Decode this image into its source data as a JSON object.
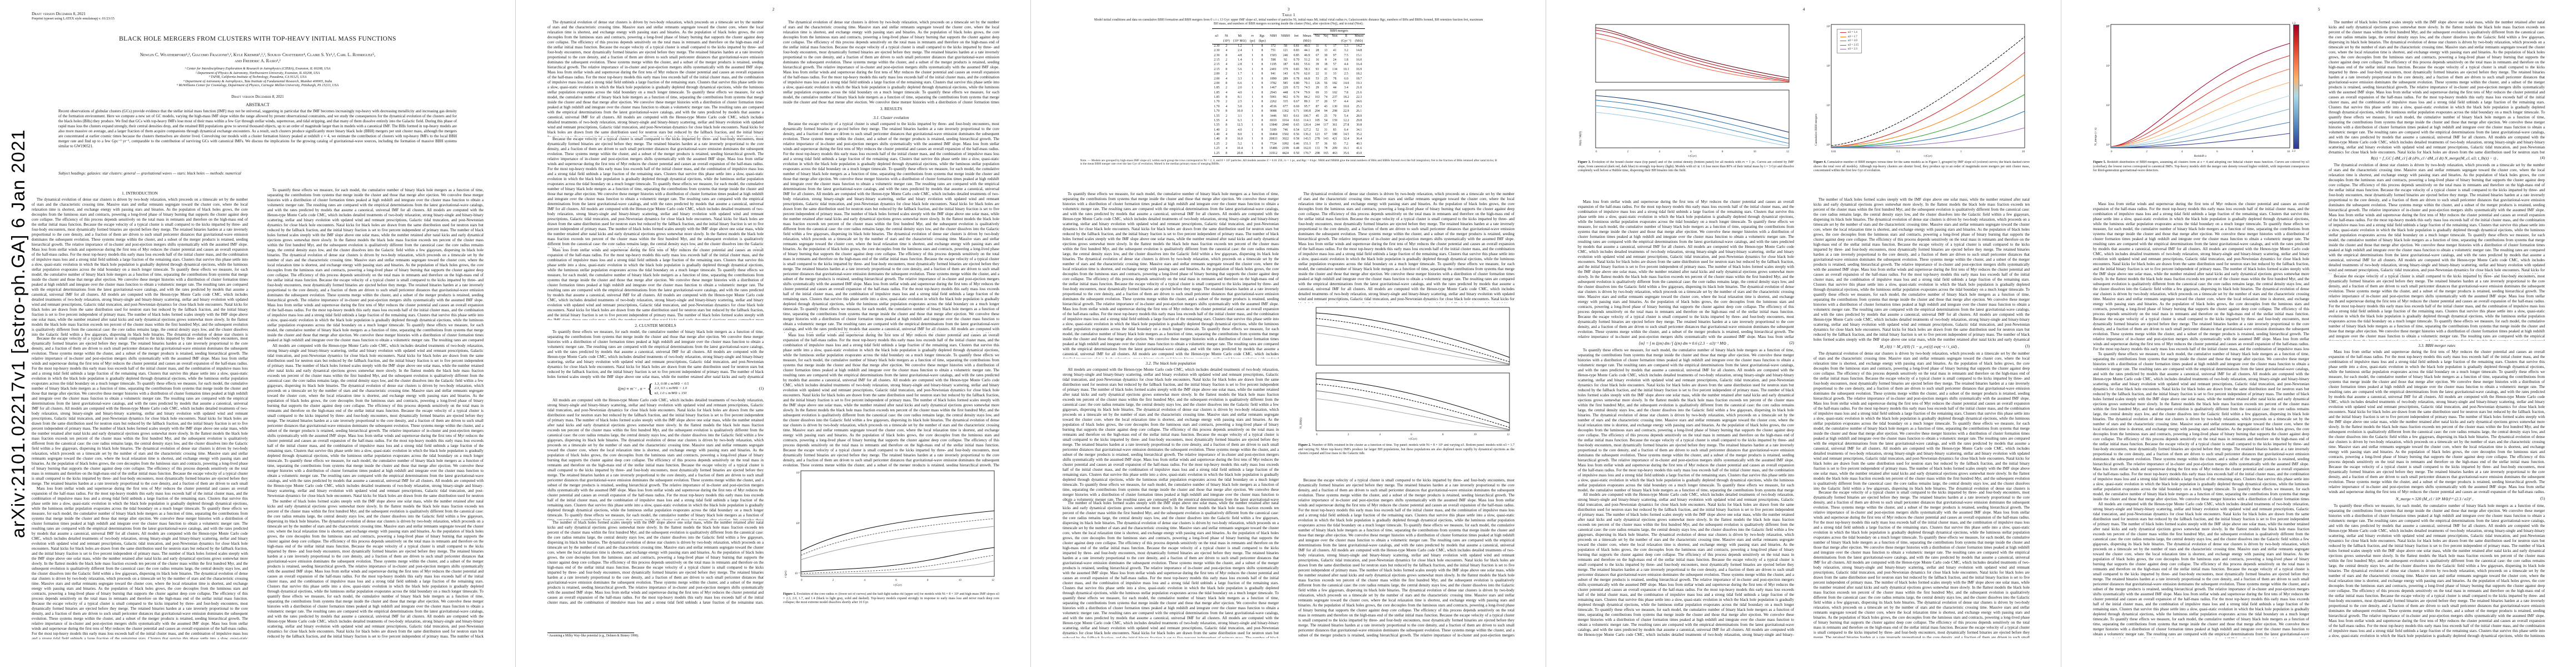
{
  "arxiv_stamp": "arXiv:2101.02217v1  [astro-ph.GA]  6 Jan 2021",
  "page_numbers": {
    "p2": "2",
    "p3": "3",
    "p4": "4",
    "p5": "5"
  },
  "page1": {
    "draft_line": "Draft version December 8, 2021",
    "preprint_line": "Preprint typeset using LATEX style emulateapj v. 01/23/15",
    "title": "BLACK HOLE MERGERS FROM CLUSTERS WITH TOP-HEAVY INITIAL MASS FUNCTIONS",
    "authors_line1": "Newlin C. Weatherford¹,², Giacomo Fragione¹,², Kyle Kremer¹,²,³, Sourav Chatterjee⁴, Claire S. Ye¹,², Carl L. Rodriguez⁵,",
    "authors_line2": "and Frederic A. Rasio¹,²",
    "affiliations": [
      "¹ Center for Interdisciplinary Exploration & Research in Astrophysics (CIERA), Evanston, IL 60208, USA",
      "² Department of Physics & Astronomy, Northwestern University, Evanston, IL 60208, USA",
      "³ TAPIR, California Institute of Technology, Pasadena, CA 91125, USA",
      "⁴ Department of Astronomy & Astrophysics, Tata Institute of Fundamental Research, Mumbai 400005, India",
      "⁵ McWilliams Center for Cosmology, Department of Physics, Carnegie Mellon University, Pittsburgh, PA 15213, USA"
    ],
    "date_line": "Draft version December 8, 2021",
    "abstract_heading": "ABSTRACT",
    "abstract": "Recent observations of globular clusters (GCs) provide evidence that the stellar initial mass function (IMF) may not be universal, suggesting in particular that the IMF becomes increasingly top-heavy with decreasing metallicity and increasing gas density of the formation environment. Here we compute a new set of GC models, varying the high-mass IMF slope within the range allowed by present observational constraints, and we study the consequences for the dynamical evolution of the clusters and for the black holes (BHs) they produce. We find that GCs with top-heavy IMFs lose most of their mass within a few Gyr through stellar winds, supernovae, and tidal stripping, and that many of them dissolve entirely into the Galactic field. During this phase of rapid mass loss the clusters expand strongly, their central densities drop, and the retained BH populations grow to several thousand objects, up to an order of magnitude larger than in models with a canonical IMF. The BHs formed in top-heavy models are also more massive on average, and a larger fraction of them acquire companions through dynamical exchange encounters. As a result, such clusters produce significantly more binary black hole (BBH) mergers per unit cluster mass, although the mergers are concentrated at earlier cosmic times because the clusters themselves are shorter lived. Convolving our models with a cluster formation history peaked at redshift z ≈ 4, we estimate the contribution of clusters with top-heavy IMFs to the local BBH merger rate and find up to a few Gpc⁻³ yr⁻¹, comparable to the contribution of surviving GCs with canonical IMFs. We discuss the implications for the growing catalog of gravitational-wave sources, including the formation of massive BBH systems similar to GW190521.",
    "keywords": "Subject headings: galaxies: star clusters: general — gravitational waves — stars: black holes — methods: numerical"
  },
  "sections": {
    "s1": "1. INTRODUCTION",
    "s2": "2. CLUSTER MODELS",
    "s3": "3. RESULTS",
    "s31": "3.1. Cluster evolution",
    "s32": "3.2. The black hole population",
    "s33": "3.3. BBH merger rates"
  },
  "footnotes": {
    "fn1": "¹ Assuming a Milky Way–like potential (e.g., Dehnen & Binney 1998)."
  },
  "equations": {
    "eq1": {
      "lhs": "ξ(m) ∝ m⁻ᵃ ,    α = ",
      "cases": [
        "1.3,   0.08 ≤ m/M⊙ < 0.5",
        "2.3,   0.5 ≤ m/M⊙ < 1.0",
        "α3,   1.0 ≤ m/M⊙ ≤ 150"
      ],
      "num": "(1)"
    },
    "eq2": {
      "body": "⟨m⟩ = ∫ m ξ(m) dm ⁄ ∫ ξ(m) dm ≈ 0.6 (2.3 − α3)⁻¹ M⊙ ,",
      "num": "(2)"
    },
    "eq3": {
      "body": "M_cl(t) = M_cl(0) [1 − μ_ev(t)] exp(−t / t_tid) ,",
      "num": "(3)"
    },
    "eq4": {
      "body": "R(z) = f_GC ∫ dM_cl ∫ dt (d²n_cl / dM_cl dt) N_merge(M_cl, α3; t_lb(z) − t) ,",
      "num": "(4)"
    },
    "eq5": {
      "body": "N_merge ≈ 320 (M_cl / 10⁶ M⊙)¹·⁶ (2.3 / α3)³ ,",
      "num": "(5)"
    }
  },
  "table1": {
    "label": "Table 1",
    "caption": "Model initial conditions and data on cumulative BBH formation and BBH mergers from 0 ≤ t ≤ 13 Gyr: upper IMF slope α3, initial number of particles Ni, initial mass Mi, initial virial radius rv, Galactocentric distance Rgc, numbers of BHs and BBHs formed, BH retention fraction fret, maximum BH mass, and numbers of BBH mergers occurring inside the cluster (Nin), after ejection (Nej), and in total (Ntot).",
    "group_header": "BBH mergers",
    "columns": [
      "α3",
      "Ni",
      "Mi",
      "rv",
      "Rgc",
      "NBH",
      "NBBH",
      "fret",
      "Mmax",
      "Nin",
      "Nej",
      "Ntot",
      "R",
      "Mmed"
    ],
    "units": [
      "",
      "(10⁵)",
      "(10⁵ M⊙)",
      "(pc)",
      "(kpc)",
      "",
      "",
      "",
      "(M⊙)",
      "",
      "",
      "",
      "(Gyr⁻¹)",
      "(M⊙)"
    ],
    "rows": [
      [
        "2.30",
        "2",
        "1.2",
        "1",
        "8",
        "372",
        "58",
        "0.81",
        "40.5",
        "11",
        "6",
        "17",
        "1.3",
        "14.2"
      ],
      [
        "2.30",
        "4",
        "2.4",
        "1",
        "8",
        "751",
        "121",
        "0.83",
        "44.1",
        "28",
        "13",
        "41",
        "3.2",
        "14.8"
      ],
      [
        "2.30",
        "8",
        "4.8",
        "1",
        "8",
        "1503",
        "246",
        "0.85",
        "46.9",
        "67",
        "30",
        "97",
        "7.5",
        "15.1"
      ],
      [
        "2.15",
        "2",
        "1.4",
        "1",
        "8",
        "598",
        "92",
        "0.79",
        "51.2",
        "16",
        "8",
        "24",
        "1.8",
        "16.0"
      ],
      [
        "2.15",
        "4",
        "2.8",
        "1",
        "8",
        "1195",
        "187",
        "0.81",
        "55.6",
        "39",
        "18",
        "57",
        "4.4",
        "16.4"
      ],
      [
        "2.15",
        "8",
        "5.6",
        "1",
        "8",
        "2401",
        "379",
        "0.83",
        "58.3",
        "93",
        "41",
        "134",
        "10.3",
        "16.9"
      ],
      [
        "2.00",
        "2",
        "1.7",
        "1",
        "8",
        "941",
        "143",
        "0.76",
        "62.0",
        "22",
        "11",
        "33",
        "2.5",
        "18.2"
      ],
      [
        "2.00",
        "4",
        "3.3",
        "1",
        "8",
        "1890",
        "289",
        "0.78",
        "66.8",
        "53",
        "25",
        "78",
        "6.0",
        "18.7"
      ],
      [
        "2.00",
        "8",
        "6.6",
        "1",
        "8",
        "3782",
        "585",
        "0.80",
        "70.1",
        "126",
        "56",
        "182",
        "14.0",
        "19.3"
      ],
      [
        "1.85",
        "2",
        "2.0",
        "1",
        "8",
        "1467",
        "220",
        "0.72",
        "74.5",
        "29",
        "15",
        "44",
        "3.4",
        "21.0"
      ],
      [
        "1.85",
        "4",
        "4.0",
        "1",
        "8",
        "2943",
        "448",
        "0.74",
        "79.9",
        "69",
        "33",
        "102",
        "7.8",
        "21.6"
      ],
      [
        "1.85",
        "8",
        "8.1",
        "1",
        "8",
        "5901",
        "902",
        "0.76",
        "84.2",
        "163",
        "74",
        "237",
        "18.2",
        "22.3"
      ],
      [
        "1.70",
        "2",
        "2.5",
        "1",
        "8",
        "2262",
        "335",
        "0.67",
        "89.3",
        "37",
        "20",
        "57",
        "4.4",
        "24.6"
      ],
      [
        "1.70",
        "4",
        "5.0",
        "1",
        "8",
        "4536",
        "677",
        "0.69",
        "95.7",
        "87",
        "43",
        "130",
        "10.0",
        "25.3"
      ],
      [
        "1.70",
        "8",
        "10.0",
        "1",
        "8",
        "9088",
        "1362",
        "0.71",
        "100.8",
        "204",
        "94",
        "298",
        "22.9",
        "26.1"
      ],
      [
        "1.55",
        "2",
        "3.1",
        "1",
        "8",
        "3446",
        "503",
        "0.61",
        "106.7",
        "45",
        "25",
        "70",
        "5.4",
        "28.9"
      ],
      [
        "1.55",
        "4",
        "6.3",
        "1",
        "8",
        "6910",
        "1014",
        "0.63",
        "114.3",
        "105",
        "54",
        "159",
        "12.2",
        "29.8"
      ],
      [
        "1.55",
        "8",
        "12.5",
        "1",
        "8",
        "13840",
        "2040",
        "0.65",
        "120.4",
        "244",
        "117",
        "361",
        "27.8",
        "30.8"
      ],
      [
        "1.40",
        "2",
        "4.0",
        "1",
        "8",
        "5189",
        "746",
        "0.54",
        "127.2",
        "52",
        "31",
        "83",
        "6.4",
        "34.1"
      ],
      [
        "1.40",
        "4",
        "8.0",
        "1",
        "8",
        "10404",
        "1502",
        "0.56",
        "136.2",
        "121",
        "67",
        "188",
        "14.5",
        "35.2"
      ],
      [
        "1.40",
        "8",
        "16.0",
        "1",
        "8",
        "20833",
        "3022",
        "0.58",
        "143.5",
        "278",
        "143",
        "421",
        "32.4",
        "36.4"
      ],
      [
        "1.25",
        "2",
        "5.2",
        "1",
        "8",
        "7724",
        "1092",
        "0.46",
        "151.3",
        "57",
        "36",
        "93",
        "7.2",
        "40.3"
      ],
      [
        "1.25",
        "4",
        "10.4",
        "1",
        "8",
        "15486",
        "2199",
        "0.48",
        "162.0",
        "131",
        "78",
        "209",
        "16.1",
        "41.6"
      ],
      [
        "1.25",
        "8",
        "20.8",
        "1",
        "8",
        "31012",
        "4424",
        "0.50",
        "170.7",
        "298",
        "165",
        "463",
        "35.6",
        "43.0"
      ]
    ],
    "notes": "Note. — Models are grouped by high-mass IMF slope α3; within each group the rows correspond to Ni = 2, 4, and 8 × 10⁵ particles. All models assume Z = 0.01 Z⊙, rv = 1 pc, and Rgc = 8 kpc. NBH and NBBH give the total numbers of BHs and BBHs formed over the full integration; fret is the fraction of BHs retained after natal kicks; R is the mean BBH merger rate over the last Gyr of evolution; Mmed is the median primary mass of merging BBHs."
  },
  "figures": {
    "fig1": {
      "label": "Figure 1.",
      "caption": "Evolution of the core radius rc (lower set of curves) and the half-light radius rhl (upper set) for models with Ni = 8 × 10⁵ and high-mass IMF slopes α3 = 2.3, 2.0, 1.7, and 1.4 (black to light gray, solid and dashed). Top-heavy models expand strongly in response to early mass loss and never reach deep core collapse; the most extreme model dissolves shortly after 10 Gyr.",
      "xlabel": "t (Gyr)",
      "ylabel": "r (pc)",
      "xticks": "0 2 4 6 8 10 12",
      "yticks": "10¹ 10⁰ 10⁻¹"
    },
    "fig2": {
      "label": "Figure 2.",
      "caption": "Number of BHs retained in the cluster as a function of time. Top panel: models with Ni = 8 × 10⁵ and varying α3. Bottom panel: models with α3 = 1.7 and varying Ni. More top-heavy IMFs produce far larger BH populations, but these populations are also depleted more rapidly by dynamical ejections as the clusters expand and lose mass to the Galactic tide.",
      "xlabel": "t (Gyr)",
      "ylabel": "N_BH(t)",
      "xticks": "0 2 4 6 8 10 12"
    },
    "fig3": {
      "label": "Figure 3.",
      "caption": "Evolution of the bound cluster mass (top panel) and of the central density (bottom panel) for all models with rv = 1 pc. Curves are colored by IMF slope, from canonical (dark red, dark blue) to strongly top-heavy (light). Models with α3 ≲ 1.6 lose more than 80% of their initial mass by t = 3 Gyr and dissolve completely well before a Hubble time, dispersing their BH binaries into the field.",
      "xlabel": "t (Gyr)",
      "ylabel": "M(t) / M(0)",
      "xticks": "0 2 4 6 8 10 12",
      "colors": [
        "#67000d",
        "#a50f15",
        "#cb181d",
        "#fb6a4a",
        "#08306b",
        "#2171b5",
        "#4292c6",
        "#9ecae1"
      ]
    },
    "fig4": {
      "label": "Figure 4.",
      "caption": "Cumulative number of BBH mergers versus time for the same models as in Figure 3, grouped by IMF slope α3 (colored curves; the black dashed curve shows the total over all models). Although top-heavy clusters are shorter lived, they produce up to an order of magnitude more mergers per unit cluster mass, concentrated within the first few Gyr of evolution.",
      "xlabel": "t (Gyr)",
      "ylabel": "Cumulative BBH mergers",
      "xticks": "0.01 0.1 1 10",
      "yticks": "10³ 10² 10¹ 10⁰",
      "legend": [
        "α3 = 1.4",
        "α3 = 1.7",
        "α3 = 2.0",
        "α3 = 2.15",
        "α3 = 2.3"
      ],
      "colors": [
        "#d62728",
        "#ff7f0e",
        "#2ca02c",
        "#1f77b4",
        "#9467bd"
      ]
    },
    "fig5": {
      "label": "Figure 5.",
      "caption": "Redshift distribution of BBH mergers, assuming all clusters form at z = 4 and adopting our fiducial cluster mass function. Curves are colored by α3 (colorbar); the lowest curves correspond to canonical IMFs. Top-heavy models shift the merger rate density toward higher redshift, with important consequences for third-generation gravitational-wave detectors.",
      "xlabel": "Redshift z",
      "ylabel": "N_merge (< z)",
      "xticks": "0 2 4 6 8 10",
      "yticks": "10⁴ 10³ 10² 10¹",
      "colorbar_title": "α3",
      "colorbar_top": "1.3",
      "colorbar_bottom": "2.3",
      "colors": [
        "#a50026",
        "#d73027",
        "#f46d43",
        "#fdae61",
        "#abd9e9",
        "#74add1",
        "#4575b4",
        "#313695"
      ]
    }
  },
  "filler": [
    "The dynamical evolution of dense star clusters is driven by two-body relaxation, which proceeds on a timescale set by the number of stars and the characteristic crossing time. Massive stars and stellar remnants segregate toward the cluster core, where the local relaxation time is shortest, and exchange energy with passing stars and binaries. As the population of black holes grows, the core decouples from the luminous stars and contracts, powering a long-lived phase of binary burning that supports the cluster against deep core collapse. The efficiency of this process depends sensitively on the total mass in remnants and therefore on the high-mass end of the stellar initial mass function.",
    "Because the escape velocity of a typical cluster is small compared to the kicks imparted by three- and four-body encounters, most dynamically formed binaries are ejected before they merge. The retained binaries harden at a rate inversely proportional to the core density, and a fraction of them are driven to such small pericenter distances that gravitational-wave emission dominates the subsequent evolution. These systems merge within the cluster, and a subset of the merger products is retained, seeding hierarchical growth. The relative importance of in-cluster and post-ejection mergers shifts systematically with the assumed IMF slope.",
    "Mass loss from stellar winds and supernovae during the first tens of Myr reduces the cluster potential and causes an overall expansion of the half-mass radius. For the most top-heavy models this early mass loss exceeds half of the initial cluster mass, and the combination of impulsive mass loss and a strong tidal field unbinds a large fraction of the remaining stars. Clusters that survive this phase settle into a slow, quasi-static evolution in which the black hole population is gradually depleted through dynamical ejections, while the luminous stellar population evaporates across the tidal boundary on a much longer timescale.",
    "To quantify these effects we measure, for each model, the cumulative number of binary black hole mergers as a function of time, separating the contributions from systems that merge inside the cluster and those that merge after ejection. We convolve these merger histories with a distribution of cluster formation times peaked at high redshift and integrate over the cluster mass function to obtain a volumetric merger rate. The resulting rates are compared with the empirical determinations from the latest gravitational-wave catalogs, and with the rates predicted by models that assume a canonical, universal IMF for all clusters.",
    "All models are computed with the Henon-type Monte Carlo code CMC, which includes detailed treatments of two-body relaxation, strong binary-single and binary-binary scattering, stellar and binary evolution with updated wind and remnant prescriptions, Galactic tidal truncation, and post-Newtonian dynamics for close black hole encounters. Natal kicks for black holes are drawn from the same distribution used for neutron stars but reduced by the fallback fraction, and the initial binary fraction is set to five percent independent of primary mass.",
    "The number of black holes formed scales steeply with the IMF slope above one solar mass, while the number retained after natal kicks and early dynamical ejections grows somewhat more slowly. In the flattest models the black hole mass fraction exceeds ten percent of the cluster mass within the first hundred Myr, and the subsequent evolution is qualitatively different from the canonical case: the core radius remains large, the central density stays low, and the cluster dissolves into the Galactic field within a few gigayears, dispersing its black hole binaries."
  ]
}
